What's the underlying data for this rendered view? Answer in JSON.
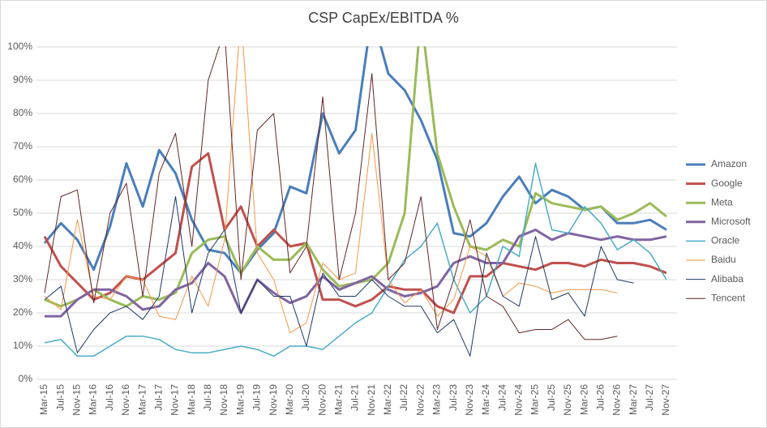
{
  "chart_data": {
    "type": "line",
    "title": "CSP CapEx/EBITDA %",
    "categories": [
      "Mar-15",
      "Jul-15",
      "Nov-15",
      "Mar-16",
      "Jul-16",
      "Nov-16",
      "Mar-17",
      "Jul-17",
      "Nov-17",
      "Mar-18",
      "Jul-18",
      "Nov-18",
      "Mar-19",
      "Jul-19",
      "Nov-19",
      "Mar-20",
      "Jul-20",
      "Nov-20",
      "Mar-21",
      "Jul-21",
      "Nov-21",
      "Mar-22",
      "Jul-22",
      "Nov-22",
      "Mar-23",
      "Jul-23",
      "Nov-23",
      "Mar-24",
      "Jul-24",
      "Nov-24",
      "Mar-25",
      "Jul-25",
      "Nov-25",
      "Mar-26",
      "Jul-26",
      "Nov-26",
      "Mar-27",
      "Jul-27",
      "Nov-27"
    ],
    "ylim": [
      0,
      100
    ],
    "yticks": [
      {
        "value": 0,
        "label": "0%"
      },
      {
        "value": 10,
        "label": "10%"
      },
      {
        "value": 20,
        "label": "20%"
      },
      {
        "value": 30,
        "label": "30%"
      },
      {
        "value": 40,
        "label": "40%"
      },
      {
        "value": 50,
        "label": "50%"
      },
      {
        "value": 60,
        "label": "60%"
      },
      {
        "value": 70,
        "label": "70%"
      },
      {
        "value": 80,
        "label": "80%"
      },
      {
        "value": 90,
        "label": "90%"
      },
      {
        "value": 100,
        "label": "100%"
      }
    ],
    "grid": true,
    "legend": "right",
    "series": [
      {
        "name": "Amazon",
        "color": "#4a7ebb",
        "line_width": 3,
        "values": [
          41,
          47,
          42,
          33,
          46,
          65,
          52,
          69,
          62,
          48,
          39,
          38,
          32,
          39,
          44,
          58,
          56,
          80,
          68,
          75,
          110,
          92,
          87,
          78,
          66,
          44,
          43,
          47,
          55,
          61,
          53,
          57,
          55,
          51,
          52,
          47,
          47,
          48,
          45
        ]
      },
      {
        "name": "Google",
        "color": "#c0504d",
        "line_width": 3,
        "values": [
          43,
          34,
          29,
          24,
          26,
          31,
          30,
          34,
          38,
          64,
          68,
          45,
          52,
          40,
          45,
          40,
          41,
          24,
          24,
          22,
          24,
          28,
          27,
          27,
          22,
          20,
          31,
          31,
          35,
          34,
          33,
          35,
          35,
          34,
          36,
          35,
          35,
          34,
          32
        ]
      },
      {
        "name": "Meta",
        "color": "#9bbb59",
        "line_width": 3,
        "values": [
          24,
          22,
          24,
          27,
          24,
          22,
          25,
          24,
          26,
          38,
          42,
          43,
          32,
          40,
          36,
          36,
          41,
          33,
          28,
          29,
          30,
          35,
          50,
          110,
          68,
          52,
          40,
          39,
          42,
          40,
          56,
          53,
          52,
          51,
          52,
          48,
          50,
          53,
          49
        ]
      },
      {
        "name": "Microsoft",
        "color": "#8064a2",
        "line_width": 3,
        "values": [
          19,
          19,
          24,
          27,
          27,
          25,
          21,
          22,
          27,
          29,
          35,
          31,
          20,
          30,
          26,
          23,
          25,
          31,
          27,
          29,
          31,
          27,
          25,
          26,
          28,
          35,
          37,
          35,
          35,
          43,
          45,
          42,
          44,
          43,
          42,
          43,
          42,
          42,
          43
        ]
      },
      {
        "name": "Oracle",
        "color": "#4bacc6",
        "line_width": 1.5,
        "values": [
          11,
          12,
          7,
          7,
          10,
          13,
          13,
          12,
          9,
          8,
          8,
          9,
          10,
          9,
          7,
          10,
          10,
          9,
          13,
          17,
          20,
          28,
          36,
          40,
          47,
          30,
          20,
          25,
          40,
          37,
          65,
          45,
          44,
          52,
          47,
          39,
          42,
          38,
          30
        ]
      },
      {
        "name": "Baidu",
        "color": "#f79646",
        "line_width": 1,
        "values": [
          25,
          21,
          48,
          25,
          24,
          31,
          30,
          19,
          18,
          31,
          22,
          42,
          110,
          38,
          30,
          14,
          17,
          35,
          30,
          32,
          74,
          30,
          23,
          27,
          19,
          24,
          40,
          37,
          25,
          29,
          28,
          26,
          27,
          27,
          27,
          26,
          null,
          null,
          null
        ]
      },
      {
        "name": "Alibaba",
        "color": "#1f3864",
        "line_width": 1,
        "values": [
          24,
          28,
          8,
          15,
          20,
          22,
          18,
          25,
          55,
          20,
          38,
          45,
          20,
          30,
          25,
          25,
          10,
          32,
          25,
          25,
          30,
          25,
          22,
          22,
          14,
          18,
          7,
          38,
          25,
          22,
          43,
          24,
          26,
          19,
          40,
          30,
          29,
          null,
          null
        ]
      },
      {
        "name": "Tencent",
        "color": "#632523",
        "line_width": 1,
        "values": [
          26,
          55,
          57,
          23,
          50,
          59,
          25,
          62,
          74,
          40,
          90,
          105,
          30,
          75,
          80,
          32,
          40,
          85,
          30,
          50,
          92,
          30,
          35,
          55,
          15,
          30,
          48,
          25,
          22,
          14,
          15,
          15,
          18,
          12,
          12,
          13,
          null,
          null,
          null
        ]
      }
    ]
  }
}
